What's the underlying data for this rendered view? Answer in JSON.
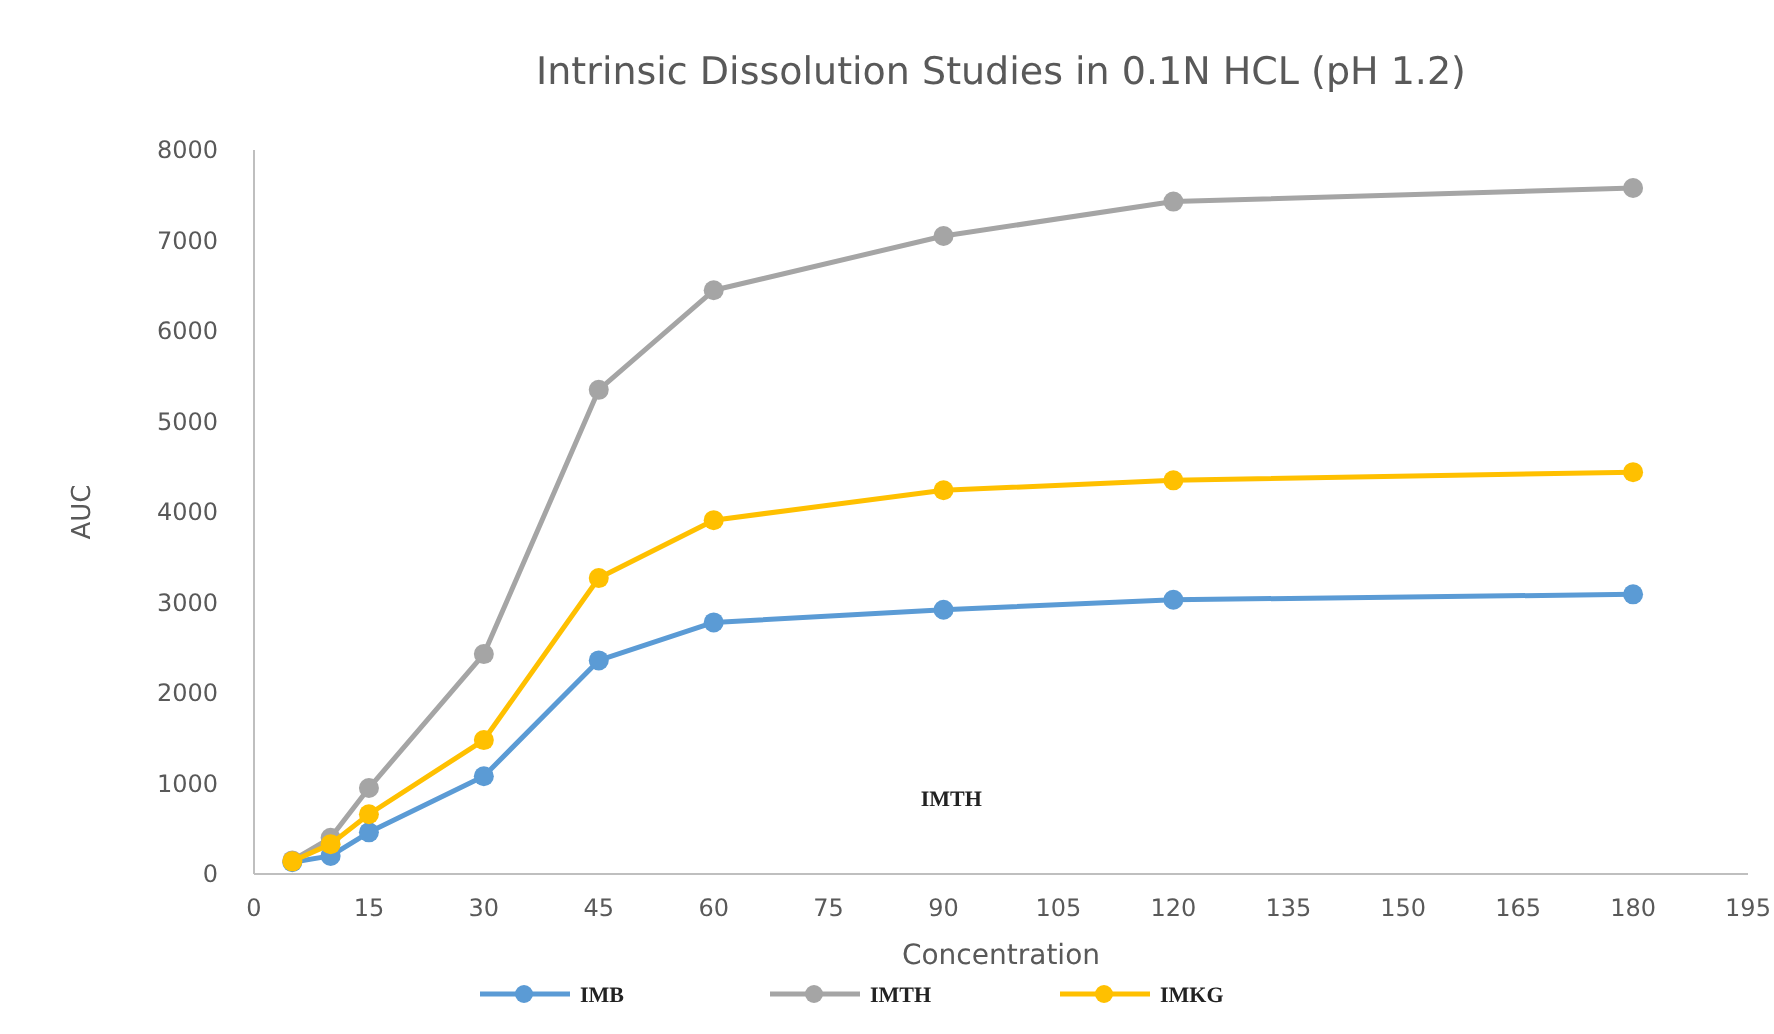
{
  "chart_data": {
    "type": "line",
    "title": "Intrinsic Dissolution Studies in 0.1N HCL (pH 1.2)",
    "xlabel": "Concentration",
    "ylabel": "AUC",
    "x": [
      5,
      10,
      15,
      30,
      45,
      60,
      90,
      120,
      180
    ],
    "series": [
      {
        "name": "IMB",
        "color": "#5b9bd5",
        "values": [
          130,
          200,
          460,
          1080,
          2360,
          2780,
          2920,
          3030,
          3090
        ]
      },
      {
        "name": "IMTH",
        "color": "#a5a5a5",
        "values": [
          150,
          400,
          950,
          2430,
          5350,
          6450,
          7050,
          7430,
          7580
        ]
      },
      {
        "name": "IMKG",
        "color": "#ffc000",
        "values": [
          140,
          330,
          660,
          1480,
          3270,
          3910,
          4240,
          4350,
          4440
        ]
      }
    ],
    "xlim": [
      0,
      195
    ],
    "xticks": [
      0,
      15,
      30,
      45,
      60,
      75,
      90,
      105,
      120,
      135,
      150,
      165,
      180,
      195
    ],
    "ylim": [
      0,
      8000
    ],
    "yticks": [
      0,
      1000,
      2000,
      3000,
      4000,
      5000,
      6000,
      7000,
      8000
    ],
    "annotations": [
      "IMTH"
    ],
    "grid": false,
    "legend": "bottom",
    "marker": "circle",
    "line_style": "solid"
  }
}
